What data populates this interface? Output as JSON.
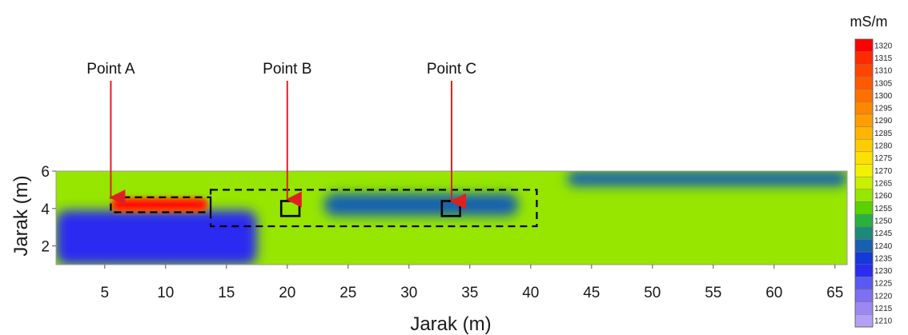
{
  "chart_data": {
    "type": "heatmap",
    "xlabel": "Jarak (m)",
    "ylabel": "Jarak (m)",
    "xlim": [
      1,
      66
    ],
    "ylim": [
      1,
      6
    ],
    "x_ticks": [
      5,
      10,
      15,
      20,
      25,
      30,
      35,
      40,
      45,
      50,
      55,
      60,
      65
    ],
    "y_ticks": [
      2,
      4,
      6
    ],
    "colorbar": {
      "unit": "mS/m",
      "levels": [
        1320,
        1315,
        1310,
        1305,
        1300,
        1295,
        1290,
        1285,
        1280,
        1275,
        1270,
        1265,
        1260,
        1255,
        1250,
        1245,
        1240,
        1235,
        1230,
        1225,
        1220,
        1215,
        1210
      ],
      "colors": [
        "#ff0000",
        "#ff2a00",
        "#ff4400",
        "#ff5a00",
        "#ff7000",
        "#ff8600",
        "#ff9e00",
        "#ffb400",
        "#ffcc00",
        "#ffe000",
        "#f2f200",
        "#c8f000",
        "#96e600",
        "#5ad200",
        "#2ab040",
        "#1c8a7a",
        "#1760b0",
        "#1638d8",
        "#2c2cf0",
        "#5a5af0",
        "#7e70f0",
        "#9c88f0",
        "#b4a0f4"
      ]
    },
    "annotations": [
      {
        "label": "Point A",
        "x": 5.5,
        "y": 4.5
      },
      {
        "label": "Point B",
        "x": 20,
        "y": 4.4
      },
      {
        "label": "Point C",
        "x": 33.5,
        "y": 4.3
      }
    ],
    "regions": [
      {
        "type": "dashed",
        "x0": 5.5,
        "x1": 13.7,
        "y0": 3.8,
        "y1": 4.6
      },
      {
        "type": "dashed",
        "x0": 13.7,
        "x1": 40.5,
        "y0": 3.05,
        "y1": 5.0
      },
      {
        "type": "solid",
        "x0": 19.5,
        "x1": 21.0,
        "y0": 3.6,
        "y1": 4.4
      },
      {
        "type": "solid",
        "x0": 32.7,
        "x1": 34.2,
        "y0": 3.6,
        "y1": 4.4
      }
    ],
    "features": [
      {
        "kind": "high",
        "level": 1310,
        "x0": 5.5,
        "x1": 13.5,
        "y0": 3.8,
        "y1": 4.6
      },
      {
        "kind": "low",
        "level": 1230,
        "x0": 1,
        "x1": 17.5,
        "y0": 1,
        "y1": 3.9
      },
      {
        "kind": "low",
        "level": 1240,
        "x0": 23,
        "x1": 39,
        "y0": 3.6,
        "y1": 4.8
      },
      {
        "kind": "low",
        "level": 1240,
        "x0": 43,
        "x1": 66,
        "y0": 5.2,
        "y1": 6
      }
    ],
    "background_level": 1260
  }
}
